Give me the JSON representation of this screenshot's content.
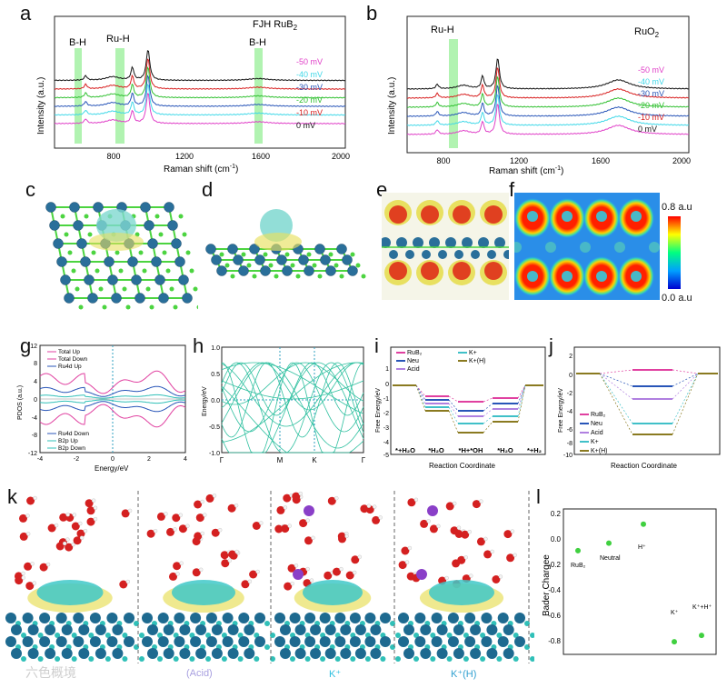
{
  "figure": {
    "letters": {
      "a": "a",
      "b": "b",
      "c": "c",
      "d": "d",
      "e": "e",
      "f": "f",
      "g": "g",
      "h": "h",
      "i": "i",
      "j": "j",
      "k": "k",
      "l": "l"
    }
  },
  "panel_a": {
    "ylabel": "Intensity (a.u.)",
    "xlabel": "Raman shift (cm",
    "xlabel_sup": "-1",
    "xlabel_end": ")",
    "title": "FJH RuB",
    "title_sub": "2",
    "annotations": [
      "B-H",
      "Ru-H",
      "B-H"
    ],
    "xticks": [
      "800",
      "1200",
      "1600",
      "2000"
    ],
    "legend": [
      "-50 mV",
      "-40 mV",
      "-30 mV",
      "-20 mV",
      "-10 mV",
      "0 mV"
    ]
  },
  "panel_b": {
    "ylabel": "Intensity (a.u.)",
    "xlabel": "Raman shift (cm",
    "xlabel_sup": "-1",
    "xlabel_end": ")",
    "title": "RuO",
    "title_sub": "2",
    "annotations": [
      "Ru-H"
    ],
    "xticks": [
      "800",
      "1200",
      "1600",
      "2000"
    ],
    "legend": [
      "-50 mV",
      "-40 mV",
      "-30 mV",
      "-20 mV",
      "-10 mV",
      "0 mV"
    ]
  },
  "panel_f": {
    "scale_max": "0.8 a.u",
    "scale_min": "0.0 a.u"
  },
  "panel_g": {
    "ylabel": "PDOS (a.u.)",
    "xlabel": "Energy/eV",
    "yticks": [
      "12",
      "8",
      "4",
      "0",
      "-4",
      "-8",
      "-12"
    ],
    "xticks": [
      "-4",
      "-2",
      "0",
      "2",
      "4"
    ],
    "legend_top": [
      "Total Up",
      "Total Down",
      "Ru4d Up"
    ],
    "legend_bottom": [
      "Ru4d Down",
      "B2p Up",
      "B2p Down"
    ]
  },
  "panel_h": {
    "ylabel": "Energy/eV",
    "yticks": [
      "1.0",
      "0.5",
      "0.0",
      "-0.5",
      "-1.0"
    ],
    "xticks": [
      "Γ",
      "M",
      "K",
      "Γ"
    ]
  },
  "panel_i": {
    "ylabel": "Free Energy/eV",
    "xlabel": "Reaction Coordinate",
    "yticks": [
      "1",
      "0",
      "-1",
      "-2",
      "-3",
      "-4",
      "-5"
    ],
    "legend": [
      "RuB₂",
      "Neu",
      "Acid",
      "K+",
      "K+(H)"
    ],
    "states": [
      "*+H₂O",
      "*H₂O",
      "*H+*OH",
      "*H₂O",
      "*+H₂"
    ]
  },
  "panel_j": {
    "ylabel": "Free Energy/eV",
    "xlabel": "Reaction Coordinate",
    "yticks": [
      "2",
      "0",
      "-2",
      "-4",
      "-6",
      "-8",
      "-10"
    ],
    "legend": [
      "RuB₂",
      "Neu",
      "Acid",
      "K+",
      "K+(H)"
    ]
  },
  "panel_k": {
    "captions": [
      "(Acid)",
      "K⁺",
      "K⁺(H)"
    ]
  },
  "panel_l": {
    "ylabel": "Bader Chargee",
    "yticks": [
      "0.2",
      "0.0",
      "-0.2",
      "-0.4",
      "-0.6",
      "-0.8"
    ],
    "point_labels": [
      "RuB₂",
      "Neutral",
      "H⁺",
      "K⁺",
      "K⁺+H⁺"
    ]
  },
  "watermark": "六色概境",
  "colors": {
    "c50": "#e040c8",
    "c40": "#40d8e8",
    "c30": "#2855b8",
    "c20": "#30c030",
    "c10": "#d82020",
    "c0": "#111111",
    "highlight": "#90ee90",
    "bond_green": "#4cd440",
    "ru_blue": "#2a6f9a",
    "iso_yellow": "#e8e060",
    "k_purple": "#8a3fc8",
    "oxygen": "#d42020",
    "teal": "#30c0b8"
  },
  "chart_data": [
    {
      "type": "line",
      "title": "FJH RuB2",
      "xlabel": "Raman shift (cm-1)",
      "ylabel": "Intensity (a.u.)",
      "xlim": [
        600,
        2000
      ],
      "series": [
        {
          "name": "-50 mV"
        },
        {
          "name": "-40 mV"
        },
        {
          "name": "-30 mV"
        },
        {
          "name": "-20 mV"
        },
        {
          "name": "-10 mV"
        },
        {
          "name": "0 mV"
        }
      ],
      "peaks": [
        750,
        975,
        1050
      ],
      "highlight_bands": [
        [
          680,
          710
        ],
        [
          870,
          910
        ],
        [
          1570,
          1600
        ]
      ]
    },
    {
      "type": "line",
      "title": "RuO2",
      "xlabel": "Raman shift (cm-1)",
      "ylabel": "Intensity (a.u.)",
      "xlim": [
        600,
        2000
      ],
      "series": [
        {
          "name": "-50 mV"
        },
        {
          "name": "-40 mV"
        },
        {
          "name": "-30 mV"
        },
        {
          "name": "-20 mV"
        },
        {
          "name": "-10 mV"
        },
        {
          "name": "0 mV"
        }
      ],
      "peaks": [
        750,
        975,
        1050,
        1650
      ],
      "highlight_bands": [
        [
          860,
          900
        ]
      ]
    },
    {
      "type": "scatter",
      "title": "",
      "ylabel": "Bader Chargee",
      "ylim": [
        -0.9,
        0.25
      ],
      "points": [
        {
          "label": "RuB2",
          "y": -0.08
        },
        {
          "label": "Neutral",
          "y": -0.02
        },
        {
          "label": "H+",
          "y": 0.13
        },
        {
          "label": "K+",
          "y": -0.8
        },
        {
          "label": "K++H+",
          "y": -0.75
        }
      ]
    }
  ]
}
